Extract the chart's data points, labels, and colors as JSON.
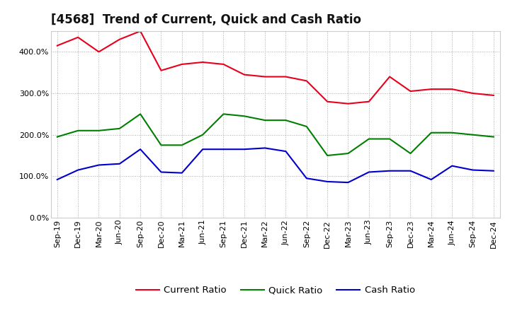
{
  "title": "[4568]  Trend of Current, Quick and Cash Ratio",
  "x_labels": [
    "Sep-19",
    "Dec-19",
    "Mar-20",
    "Jun-20",
    "Sep-20",
    "Dec-20",
    "Mar-21",
    "Jun-21",
    "Sep-21",
    "Dec-21",
    "Mar-22",
    "Jun-22",
    "Sep-22",
    "Dec-22",
    "Mar-23",
    "Jun-23",
    "Sep-23",
    "Dec-23",
    "Mar-24",
    "Jun-24",
    "Sep-24",
    "Dec-24"
  ],
  "current_ratio": [
    415,
    435,
    400,
    430,
    450,
    355,
    370,
    375,
    370,
    345,
    340,
    340,
    330,
    280,
    275,
    280,
    340,
    305,
    310,
    310,
    300,
    295
  ],
  "quick_ratio": [
    195,
    210,
    210,
    215,
    250,
    175,
    175,
    200,
    250,
    245,
    235,
    235,
    220,
    150,
    155,
    190,
    190,
    155,
    205,
    205,
    200,
    195
  ],
  "cash_ratio": [
    92,
    115,
    127,
    130,
    165,
    110,
    108,
    165,
    165,
    165,
    168,
    160,
    95,
    87,
    85,
    110,
    113,
    113,
    92,
    125,
    115,
    113
  ],
  "current_color": "#e8001c",
  "quick_color": "#008000",
  "cash_color": "#0000cc",
  "bg_color": "#ffffff",
  "plot_bg_color": "#ffffff",
  "grid_color": "#aaaaaa",
  "ylim": [
    0,
    450
  ],
  "yticks": [
    0,
    100,
    200,
    300,
    400
  ],
  "title_fontsize": 12,
  "legend_fontsize": 9.5,
  "tick_fontsize": 8
}
